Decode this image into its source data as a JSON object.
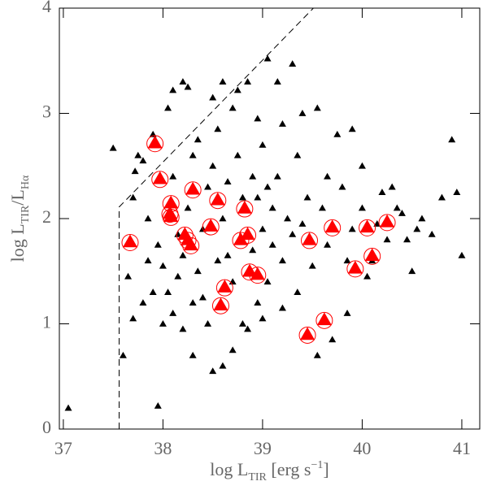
{
  "chart_data": {
    "type": "scatter",
    "xlabel": [
      {
        "text": "log L"
      },
      {
        "text": "TIR",
        "shift": "sub"
      },
      {
        "text": " [erg s"
      },
      {
        "text": "−1",
        "shift": "super"
      },
      {
        "text": "]"
      }
    ],
    "ylabel": [
      {
        "text": "log L"
      },
      {
        "text": "TIR",
        "shift": "sub"
      },
      {
        "text": "/L"
      },
      {
        "text": "Hα",
        "shift": "sub"
      }
    ],
    "xlim": [
      36.96,
      41.18
    ],
    "ylim": [
      0,
      4
    ],
    "xticks": [
      37,
      38,
      39,
      40,
      41
    ],
    "yticks": [
      0,
      1,
      2,
      3,
      4
    ],
    "series": [
      {
        "color": "#000000",
        "x": [
          37.05,
          37.6,
          37.95,
          37.5,
          37.72,
          37.75,
          37.8,
          37.9,
          38.05,
          38.1,
          38.2,
          38.25,
          38.35,
          38.5,
          38.6,
          38.7,
          38.75,
          38.85,
          39.05,
          39.3,
          39.15,
          39.2,
          39.4,
          39.55,
          39.65,
          39.75,
          39.9,
          40.0,
          40.2,
          40.35,
          40.45,
          40.6,
          40.7,
          40.8,
          40.9,
          40.95,
          41.0,
          40.5,
          40.1,
          39.85,
          39.7,
          39.55,
          39.35,
          39.2,
          39.1,
          39.0,
          38.9,
          38.95,
          38.8,
          38.7,
          38.6,
          38.5,
          38.45,
          38.3,
          38.2,
          38.1,
          38.0,
          37.9,
          37.8,
          37.7,
          37.65,
          37.7,
          37.85,
          37.95,
          38.0,
          38.15,
          38.2,
          38.35,
          38.4,
          38.45,
          38.5,
          38.6,
          38.65,
          38.7,
          38.75,
          38.8,
          38.9,
          39.0,
          39.05,
          39.1,
          39.15,
          39.25,
          39.3,
          39.35,
          39.45,
          39.5,
          39.6,
          39.65,
          39.8,
          39.9,
          40.0,
          40.15,
          40.25,
          40.3,
          40.4,
          40.55,
          38.25,
          38.1,
          38.3,
          38.55,
          38.95,
          39.05,
          38.85,
          39.0,
          38.4,
          38.55,
          38.15,
          37.85,
          38.05,
          38.3,
          39.2,
          39.4,
          39.85,
          40.05,
          38.65,
          38.95
        ],
        "values": [
          0.2,
          0.7,
          0.22,
          2.67,
          2.45,
          2.6,
          2.55,
          2.8,
          3.05,
          3.22,
          3.3,
          3.25,
          2.75,
          3.15,
          3.3,
          3.05,
          3.22,
          3.3,
          3.52,
          3.47,
          3.3,
          2.9,
          3.0,
          3.05,
          2.4,
          2.8,
          2.85,
          2.5,
          2.25,
          2.1,
          1.8,
          2.0,
          1.85,
          2.2,
          2.75,
          2.25,
          1.65,
          1.5,
          1.6,
          1.1,
          0.85,
          0.7,
          1.3,
          1.6,
          2.1,
          2.7,
          2.4,
          1.2,
          1.0,
          0.75,
          0.6,
          0.55,
          1.0,
          0.7,
          0.95,
          1.1,
          1.0,
          1.3,
          1.2,
          1.05,
          1.45,
          2.2,
          2.0,
          1.75,
          1.55,
          1.45,
          1.65,
          1.5,
          1.9,
          2.3,
          2.5,
          2.0,
          1.65,
          1.4,
          2.6,
          2.2,
          1.7,
          1.9,
          1.4,
          1.75,
          2.4,
          2.0,
          1.85,
          2.6,
          2.2,
          1.55,
          2.1,
          1.75,
          2.3,
          1.9,
          2.1,
          1.95,
          1.8,
          2.3,
          2.05,
          1.9,
          2.1,
          2.4,
          2.6,
          2.85,
          2.95,
          2.3,
          0.95,
          1.05,
          1.25,
          1.6,
          1.85,
          1.6,
          1.3,
          1.2,
          1.15,
          1.95,
          1.6,
          1.45,
          2.35,
          2.2
        ]
      },
      {
        "color": "#ff0000",
        "x": [
          37.67,
          37.92,
          37.97,
          38.08,
          38.07,
          38.08,
          38.22,
          38.3,
          38.28,
          38.25,
          38.48,
          38.55,
          38.58,
          38.62,
          38.78,
          38.82,
          38.85,
          38.87,
          38.95,
          39.47,
          39.45,
          39.62,
          39.7,
          39.93,
          40.05,
          40.1,
          40.25
        ],
        "values": [
          1.78,
          2.72,
          2.38,
          2.15,
          2.05,
          2.02,
          1.85,
          2.28,
          1.75,
          1.8,
          1.93,
          2.18,
          1.18,
          1.35,
          1.8,
          2.1,
          1.85,
          1.5,
          1.47,
          1.8,
          0.9,
          1.04,
          1.92,
          1.53,
          1.92,
          1.65,
          1.97
        ]
      }
    ],
    "lines": [
      {
        "x": [
          37.56,
          37.56,
          39.51
        ],
        "y": [
          0,
          2.11,
          4
        ],
        "dash": true
      }
    ]
  }
}
